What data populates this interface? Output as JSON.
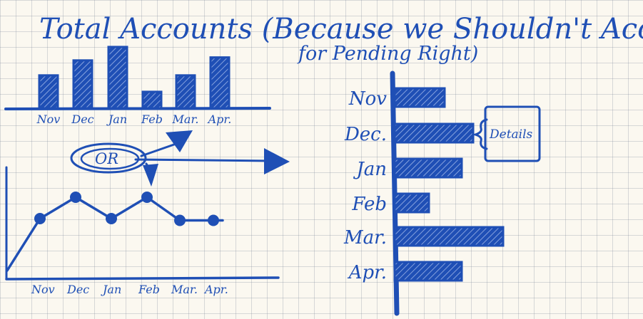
{
  "title_line1": "Total Accounts (Because we Shouldn't Account",
  "title_line2": "for Pending Right)",
  "or_label": "OR",
  "details_label": "Details",
  "ink_color": "#1f4fb5",
  "chart_data": [
    {
      "type": "bar",
      "categories": [
        "Nov",
        "Dec",
        "Jan",
        "Feb",
        "Mar.",
        "Apr."
      ],
      "values": [
        2.2,
        3.2,
        4.1,
        1.1,
        2.2,
        3.4
      ]
    },
    {
      "type": "line",
      "categories": [
        "Nov",
        "Dec",
        "Jan",
        "Feb",
        "Mar.",
        "Apr."
      ],
      "values": [
        3.4,
        4.6,
        3.4,
        4.6,
        3.3,
        3.3
      ]
    },
    {
      "type": "bar",
      "orientation": "horizontal",
      "categories": [
        "Nov",
        "Dec.",
        "Jan",
        "Feb",
        "Mar.",
        "Apr."
      ],
      "values": [
        3.5,
        5.5,
        4.7,
        2.4,
        7.6,
        4.7
      ]
    }
  ]
}
